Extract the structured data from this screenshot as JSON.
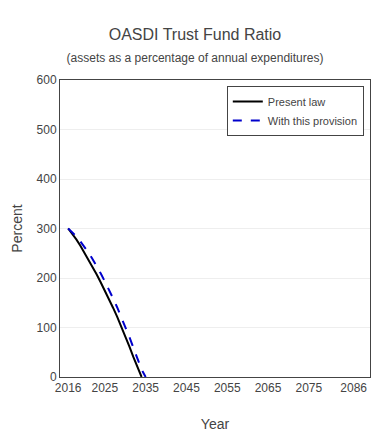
{
  "chart_data": {
    "type": "line",
    "title": "OASDI Trust Fund Ratio",
    "subtitle": "(assets as a percentage of annual expenditures)",
    "xlabel": "Year",
    "ylabel": "Percent",
    "series": [
      {
        "name": "Present law",
        "color": "#000000",
        "line_style": "solid",
        "x": [
          2016,
          2017,
          2018,
          2019,
          2020,
          2021,
          2022,
          2023,
          2024,
          2025,
          2026,
          2027,
          2028,
          2029,
          2030,
          2031,
          2032,
          2033,
          2034
        ],
        "values": [
          300,
          290,
          278,
          265,
          251,
          237,
          222,
          207,
          191,
          175,
          158,
          140,
          122,
          103,
          83,
          62,
          40,
          18,
          0
        ]
      },
      {
        "name": "With this provision",
        "color": "#0000cc",
        "line_style": "dashed",
        "x": [
          2016,
          2017,
          2018,
          2019,
          2020,
          2021,
          2022,
          2023,
          2024,
          2025,
          2026,
          2027,
          2028,
          2029,
          2030,
          2031,
          2032,
          2033,
          2034,
          2035
        ],
        "values": [
          300,
          293,
          284,
          274,
          263,
          251,
          238,
          224,
          209,
          193,
          177,
          159,
          141,
          122,
          102,
          81,
          59,
          37,
          15,
          0
        ]
      }
    ],
    "xlim": [
      2014,
      2090
    ],
    "ylim": [
      0,
      600
    ],
    "xticks": [
      2016,
      2025,
      2035,
      2045,
      2055,
      2065,
      2075,
      2086
    ],
    "yticks": [
      0,
      100,
      200,
      300,
      400,
      500,
      600
    ],
    "grid": "y",
    "legend": "upper right"
  }
}
